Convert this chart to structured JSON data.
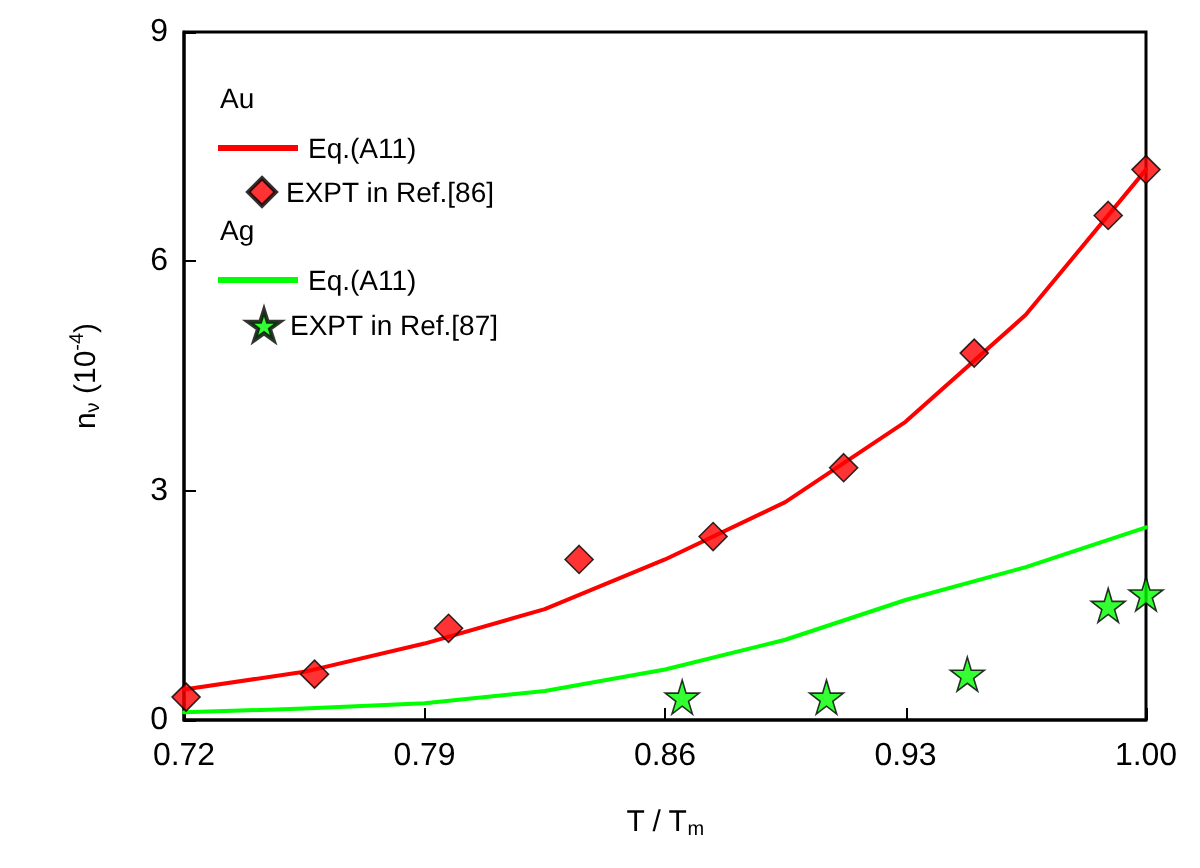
{
  "chart_data": {
    "type": "line",
    "xlabel": "T / T$_{m}$",
    "ylabel": "n$_{ν}$ (10$^{-4}$)",
    "xlim": [
      0.72,
      1.0
    ],
    "xticks": [
      0.72,
      0.79,
      0.86,
      0.93,
      {
        "value": 1.0,
        "label": "1.00"
      }
    ],
    "ylim": [
      0,
      9
    ],
    "yticks": [
      0,
      3,
      6,
      9
    ],
    "grid": false,
    "legend": "top left",
    "annotations": [
      "Au",
      "Ag"
    ],
    "series": [
      {
        "name": "Eq.(A11)",
        "color": "#ff0000",
        "marker": "none",
        "line_style": "solid",
        "x": [
          0.72,
          0.755,
          0.79,
          0.825,
          0.86,
          0.895,
          0.93,
          0.965,
          1.0
        ],
        "values": [
          0.4,
          0.63,
          1.0,
          1.45,
          2.1,
          2.85,
          3.9,
          5.3,
          7.2
        ]
      },
      {
        "name": "EXPT in Ref.[86]",
        "type": "scatter",
        "color": "#ff0000",
        "marker": "diamond",
        "x": [
          0.7206,
          0.758,
          0.797,
          0.835,
          0.874,
          0.912,
          0.95,
          0.989,
          1.0
        ],
        "values": [
          0.3,
          0.6,
          1.2,
          2.1,
          2.4,
          3.3,
          4.8,
          6.6,
          7.2
        ]
      },
      {
        "name": "Eq.(A11)",
        "color": "#00ff00",
        "marker": "none",
        "line_style": "solid",
        "x": [
          0.72,
          0.755,
          0.79,
          0.825,
          0.86,
          0.895,
          0.93,
          0.965,
          1.0
        ],
        "values": [
          0.1,
          0.15,
          0.22,
          0.38,
          0.66,
          1.05,
          1.57,
          2.0,
          2.52
        ]
      },
      {
        "name": "EXPT in Ref.[87]",
        "type": "scatter",
        "color": "#00ff00",
        "marker": "star",
        "x": [
          0.865,
          0.907,
          0.948,
          0.989,
          1.0
        ],
        "values": [
          0.3,
          0.3,
          0.6,
          1.5,
          1.65
        ]
      }
    ]
  }
}
